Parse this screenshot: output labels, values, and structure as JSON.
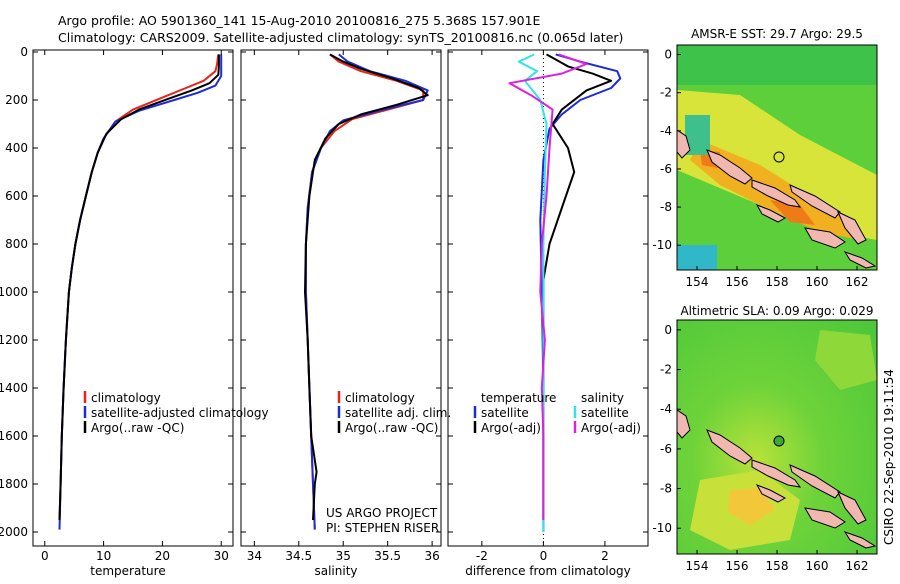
{
  "header": {
    "line1": "Argo profile: AO 5901360_141 15-Aug-2010 20100816_275 5.368S 157.901E",
    "line2": "Climatology: CARS2009. Satellite-adjusted climatology: synTS_20100816.nc (0.065d later)"
  },
  "footer_stamp": "CSIRO 22-Sep-2010 19:11:54",
  "colors": {
    "climatology": "#e8231a",
    "satellite": "#1c2cd6",
    "argo": "#000000",
    "salinity_sat": "#2ee6e6",
    "salinity_argo": "#e020e0",
    "land": "#f0b8b0",
    "map_green": "#5ccf3a"
  },
  "chart_data": [
    {
      "type": "line",
      "panel": "temperature",
      "xlabel": "temperature",
      "ylabel": "",
      "xlim": [
        -2,
        32
      ],
      "ylim": [
        0,
        2050
      ],
      "y_reversed": true,
      "xticks": [
        0,
        10,
        20,
        30
      ],
      "yticks": [
        0,
        200,
        400,
        600,
        800,
        1000,
        1200,
        1400,
        1600,
        1800,
        2000
      ],
      "legend": [
        "climatology",
        "satellite-adjusted climatology",
        "Argo(..raw -QC)"
      ],
      "series": [
        {
          "name": "climatology",
          "color": "#e8231a",
          "points": [
            [
              29.5,
              10
            ],
            [
              29.3,
              50
            ],
            [
              29.0,
              80
            ],
            [
              27,
              120
            ],
            [
              24,
              150
            ],
            [
              20,
              190
            ],
            [
              15,
              240
            ],
            [
              12,
              290
            ],
            [
              10,
              360
            ],
            [
              9,
              420
            ],
            [
              8,
              500
            ],
            [
              7,
              600
            ],
            [
              6,
              700
            ],
            [
              5.2,
              800
            ],
            [
              4.6,
              900
            ],
            [
              4.1,
              1000
            ],
            [
              3.6,
              1200
            ],
            [
              3.2,
              1400
            ],
            [
              2.9,
              1600
            ],
            [
              2.7,
              1800
            ],
            [
              2.5,
              1950
            ]
          ]
        },
        {
          "name": "satellite-adjusted climatology",
          "color": "#1c2cd6",
          "points": [
            [
              30.0,
              10
            ],
            [
              30.0,
              60
            ],
            [
              30.0,
              100
            ],
            [
              29,
              140
            ],
            [
              26,
              170
            ],
            [
              22,
              200
            ],
            [
              16,
              245
            ],
            [
              12,
              290
            ],
            [
              10,
              360
            ],
            [
              9,
              420
            ],
            [
              8,
              500
            ],
            [
              7,
              600
            ],
            [
              6,
              700
            ],
            [
              5.2,
              800
            ],
            [
              4.6,
              900
            ],
            [
              4.1,
              1000
            ],
            [
              3.6,
              1200
            ],
            [
              3.2,
              1400
            ],
            [
              2.9,
              1600
            ],
            [
              2.7,
              1800
            ],
            [
              2.5,
              1990
            ]
          ]
        },
        {
          "name": "Argo(..raw -QC)",
          "color": "#000000",
          "points": [
            [
              29.6,
              10
            ],
            [
              29.6,
              60
            ],
            [
              29.5,
              95
            ],
            [
              28,
              130
            ],
            [
              25,
              160
            ],
            [
              21,
              195
            ],
            [
              16,
              240
            ],
            [
              13,
              280
            ],
            [
              10.5,
              340
            ],
            [
              9,
              420
            ],
            [
              8,
              500
            ],
            [
              7,
              600
            ],
            [
              6,
              700
            ],
            [
              5.2,
              800
            ],
            [
              4.6,
              900
            ],
            [
              4.1,
              1000
            ],
            [
              3.6,
              1200
            ],
            [
              3.2,
              1400
            ],
            [
              2.9,
              1600
            ],
            [
              2.7,
              1800
            ],
            [
              2.5,
              1950
            ]
          ]
        }
      ]
    },
    {
      "type": "line",
      "panel": "salinity",
      "xlabel": "salinity",
      "xlim": [
        33.85,
        36.1
      ],
      "ylim": [
        0,
        2050
      ],
      "y_reversed": true,
      "xticks": [
        34,
        34.5,
        35,
        35.5,
        36
      ],
      "legend": [
        "climatology",
        "satellite adj. clim.",
        "Argo(..raw -QC)"
      ],
      "annotation": [
        "US ARGO PROJECT",
        "PI: STEPHEN RISER"
      ],
      "series": [
        {
          "name": "climatology",
          "color": "#e8231a",
          "points": [
            [
              34.85,
              10
            ],
            [
              34.95,
              40
            ],
            [
              35.2,
              80
            ],
            [
              35.6,
              120
            ],
            [
              35.9,
              160
            ],
            [
              35.9,
              200
            ],
            [
              35.5,
              240
            ],
            [
              35.1,
              280
            ],
            [
              34.9,
              330
            ],
            [
              34.75,
              400
            ],
            [
              34.65,
              500
            ],
            [
              34.6,
              650
            ],
            [
              34.58,
              800
            ],
            [
              34.58,
              1000
            ],
            [
              34.6,
              1200
            ],
            [
              34.62,
              1400
            ],
            [
              34.64,
              1600
            ],
            [
              34.66,
              1800
            ],
            [
              34.68,
              1990
            ]
          ]
        },
        {
          "name": "satellite adj. clim.",
          "color": "#1c2cd6",
          "points": [
            [
              34.95,
              10
            ],
            [
              35.05,
              40
            ],
            [
              35.3,
              80
            ],
            [
              35.7,
              120
            ],
            [
              35.95,
              160
            ],
            [
              35.9,
              200
            ],
            [
              35.4,
              245
            ],
            [
              35.0,
              285
            ],
            [
              34.85,
              330
            ],
            [
              34.75,
              400
            ],
            [
              34.65,
              500
            ],
            [
              34.6,
              650
            ],
            [
              34.58,
              800
            ],
            [
              34.58,
              1000
            ],
            [
              34.6,
              1200
            ],
            [
              34.62,
              1400
            ],
            [
              34.64,
              1600
            ],
            [
              34.66,
              1800
            ],
            [
              34.68,
              1990
            ]
          ]
        },
        {
          "name": "Argo(..raw -QC)",
          "color": "#000000",
          "points": [
            [
              34.85,
              10
            ],
            [
              35.0,
              40
            ],
            [
              35.2,
              70
            ],
            [
              35.55,
              110
            ],
            [
              35.85,
              150
            ],
            [
              35.95,
              180
            ],
            [
              35.6,
              220
            ],
            [
              35.2,
              260
            ],
            [
              34.95,
              300
            ],
            [
              34.8,
              360
            ],
            [
              34.68,
              450
            ],
            [
              34.62,
              600
            ],
            [
              34.58,
              800
            ],
            [
              34.57,
              1000
            ],
            [
              34.6,
              1200
            ],
            [
              34.62,
              1400
            ],
            [
              34.64,
              1600
            ],
            [
              34.7,
              1750
            ],
            [
              34.68,
              1800
            ],
            [
              34.66,
              1950
            ]
          ]
        }
      ]
    },
    {
      "type": "line",
      "panel": "difference",
      "xlabel": "difference from climatology",
      "xlim": [
        -3.1,
        3.4
      ],
      "ylim": [
        0,
        2050
      ],
      "y_reversed": true,
      "xticks": [
        -2,
        0,
        2
      ],
      "legend": [
        "temperature",
        "satellite",
        "Argo(-adj)",
        "salinity",
        "satellite",
        "Argo(-adj)"
      ],
      "series": [
        {
          "name": "temperature satellite",
          "color": "#1c2cd6",
          "points": [
            [
              0.4,
              10
            ],
            [
              1.2,
              40
            ],
            [
              2.4,
              80
            ],
            [
              2.5,
              110
            ],
            [
              2.2,
              150
            ],
            [
              1.2,
              200
            ],
            [
              0.6,
              260
            ],
            [
              0.2,
              320
            ],
            [
              0.0,
              450
            ],
            [
              -0.1,
              700
            ],
            [
              -0.05,
              1000
            ],
            [
              0,
              1400
            ],
            [
              0,
              2000
            ]
          ]
        },
        {
          "name": "temperature Argo(-adj)",
          "color": "#000000",
          "points": [
            [
              0.1,
              10
            ],
            [
              0.8,
              60
            ],
            [
              1.6,
              90
            ],
            [
              2.2,
              120
            ],
            [
              1.4,
              160
            ],
            [
              0.6,
              240
            ],
            [
              0.3,
              300
            ],
            [
              0.8,
              400
            ],
            [
              1.0,
              500
            ],
            [
              0.6,
              650
            ],
            [
              0.2,
              800
            ],
            [
              0.0,
              950
            ],
            [
              0,
              1200
            ],
            [
              0,
              1600
            ],
            [
              0,
              1950
            ]
          ]
        },
        {
          "name": "salinity satellite",
          "color": "#2ee6e6",
          "points": [
            [
              -0.3,
              10
            ],
            [
              -0.8,
              40
            ],
            [
              -0.2,
              80
            ],
            [
              -0.6,
              120
            ],
            [
              -0.1,
              200
            ],
            [
              0.1,
              300
            ],
            [
              0.05,
              500
            ],
            [
              0,
              800
            ],
            [
              0,
              1200
            ],
            [
              0,
              1600
            ],
            [
              0,
              2000
            ]
          ]
        },
        {
          "name": "salinity Argo(-adj)",
          "color": "#e020e0",
          "points": [
            [
              0.5,
              10
            ],
            [
              1.4,
              50
            ],
            [
              0.6,
              90
            ],
            [
              -1.1,
              130
            ],
            [
              -0.4,
              180
            ],
            [
              0.3,
              240
            ],
            [
              0.2,
              400
            ],
            [
              0.1,
              600
            ],
            [
              -0.05,
              800
            ],
            [
              -0.1,
              1000
            ],
            [
              0.05,
              1200
            ],
            [
              -0.05,
              1400
            ],
            [
              0,
              1600
            ],
            [
              0,
              1950
            ]
          ]
        }
      ]
    },
    {
      "type": "heatmap",
      "panel": "sst-map",
      "title": "AMSR-E SST: 29.7 Argo: 29.5",
      "xticks": [
        154,
        156,
        158,
        160,
        162
      ],
      "yticks": [
        0,
        -2,
        -4,
        -6,
        -8,
        -10
      ],
      "xlim": [
        153,
        163
      ],
      "ylim": [
        -11.3,
        0.5
      ],
      "argo_position": [
        157.9,
        -5.37
      ]
    },
    {
      "type": "heatmap",
      "panel": "sla-map",
      "title": "Altimetric SLA: 0.09 Argo: 0.029",
      "xticks": [
        154,
        156,
        158,
        160,
        162
      ],
      "yticks": [
        0,
        -2,
        -4,
        -6,
        -8,
        -10
      ],
      "xlim": [
        153,
        163
      ],
      "ylim": [
        -11.3,
        0.5
      ],
      "argo_position": [
        157.9,
        -5.37
      ]
    }
  ]
}
